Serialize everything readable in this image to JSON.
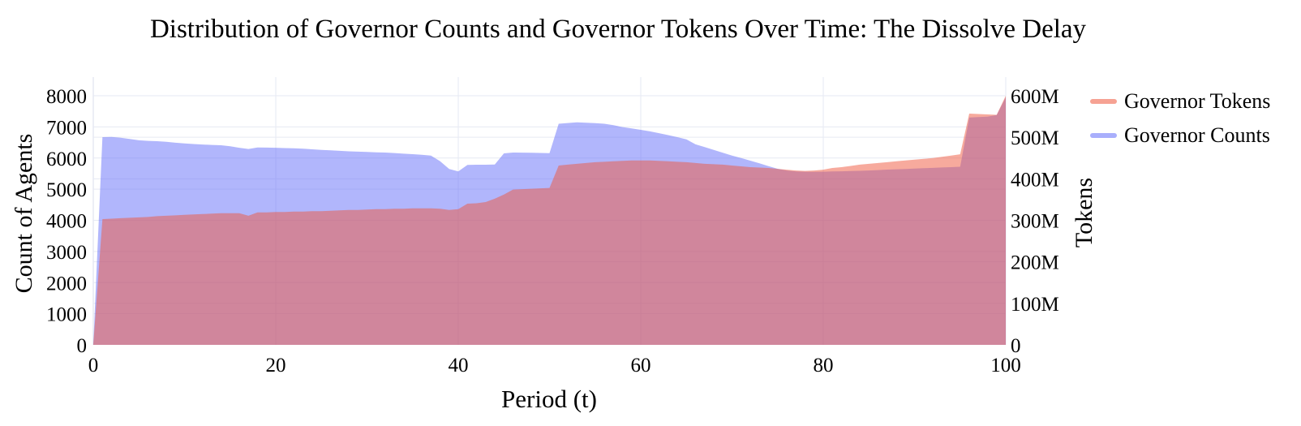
{
  "title": "Distribution of Governor Counts and Governor Tokens Over Time: The Dissolve Delay",
  "legend": {
    "items": [
      {
        "label": "Governor Tokens",
        "color": "rgba(239,85,59,0.55)"
      },
      {
        "label": "Governor Counts",
        "color": "rgba(99,110,250,0.55)"
      }
    ]
  },
  "chart_data": {
    "type": "area",
    "title": "Distribution of Governor Counts and Governor Tokens Over Time: The Dissolve Delay",
    "xlabel": "Period (t)",
    "ylabel_left": "Count of Agents",
    "ylabel_right": "Tokens",
    "grid": true,
    "legend_position": "top-right",
    "x_range": [
      0,
      100
    ],
    "x_ticks": [
      "0",
      "20",
      "40",
      "60",
      "80",
      "100"
    ],
    "y_left": {
      "min": 0,
      "max": 8000,
      "ticks": [
        "0",
        "1000",
        "2000",
        "3000",
        "4000",
        "5000",
        "6000",
        "7000",
        "8000"
      ]
    },
    "y_right": {
      "min": 0,
      "max": 600000000,
      "ticks": [
        "0",
        "100M",
        "200M",
        "300M",
        "400M",
        "500M",
        "600M"
      ]
    },
    "x": [
      0,
      1,
      2,
      3,
      4,
      5,
      6,
      7,
      8,
      9,
      10,
      11,
      12,
      13,
      14,
      15,
      16,
      17,
      18,
      19,
      20,
      21,
      22,
      23,
      24,
      25,
      26,
      27,
      28,
      29,
      30,
      31,
      32,
      33,
      34,
      35,
      36,
      37,
      38,
      39,
      40,
      41,
      42,
      43,
      44,
      45,
      46,
      47,
      48,
      49,
      50,
      51,
      52,
      53,
      54,
      55,
      56,
      57,
      58,
      59,
      60,
      61,
      62,
      63,
      64,
      65,
      66,
      67,
      68,
      69,
      70,
      71,
      72,
      73,
      74,
      75,
      76,
      77,
      78,
      79,
      80,
      81,
      82,
      83,
      84,
      85,
      86,
      87,
      88,
      89,
      90,
      91,
      92,
      93,
      94,
      95,
      96,
      97,
      98,
      99,
      100
    ],
    "series": [
      {
        "name": "Governor Counts",
        "axis": "left",
        "fill_color": "rgba(99,110,250,0.5)",
        "base_color": "#636efa",
        "values": [
          0,
          6670,
          6680,
          6650,
          6610,
          6570,
          6550,
          6540,
          6520,
          6490,
          6470,
          6450,
          6435,
          6420,
          6410,
          6380,
          6330,
          6290,
          6340,
          6335,
          6330,
          6320,
          6315,
          6300,
          6280,
          6260,
          6245,
          6230,
          6215,
          6205,
          6195,
          6185,
          6175,
          6160,
          6140,
          6125,
          6105,
          6080,
          5900,
          5650,
          5570,
          5780,
          5785,
          5785,
          5790,
          6150,
          6175,
          6172,
          6168,
          6162,
          6155,
          7100,
          7125,
          7145,
          7135,
          7120,
          7100,
          7055,
          6995,
          6950,
          6905,
          6855,
          6800,
          6735,
          6670,
          6600,
          6440,
          6350,
          6260,
          6170,
          6080,
          6000,
          5915,
          5830,
          5740,
          5655,
          5600,
          5570,
          5560,
          5555,
          5560,
          5568,
          5575,
          5582,
          5590,
          5600,
          5614,
          5628,
          5640,
          5650,
          5660,
          5672,
          5684,
          5696,
          5708,
          5720,
          7300,
          7315,
          7330,
          7380,
          7950
        ]
      },
      {
        "name": "Governor Tokens",
        "axis": "right",
        "fill_color": "rgba(239,85,59,0.5)",
        "base_color": "#ef553b",
        "values_unit": "millions of tokens",
        "values": [
          0,
          303,
          304,
          305,
          306,
          307,
          308,
          310,
          311,
          312,
          313,
          314,
          315,
          316,
          317,
          317,
          317,
          311,
          319,
          319,
          320,
          320,
          321,
          321,
          322,
          322,
          323,
          324,
          325,
          325,
          326,
          327,
          327,
          328,
          328,
          329,
          329,
          329,
          328,
          325,
          327,
          340,
          341,
          344,
          352,
          362,
          374,
          375,
          376,
          377,
          378,
          432,
          434,
          436,
          438,
          440,
          441,
          442,
          443,
          444,
          444,
          444,
          443,
          442,
          441,
          440,
          438,
          436,
          435,
          434,
          432,
          430,
          428,
          427,
          426,
          424,
          422,
          420,
          419,
          420,
          422,
          426,
          428,
          431,
          434,
          436,
          438,
          440,
          442,
          444,
          446,
          448,
          450,
          453,
          456,
          459,
          557,
          556,
          555,
          554,
          600
        ]
      }
    ],
    "grid_color": "#e6e9f3"
  }
}
